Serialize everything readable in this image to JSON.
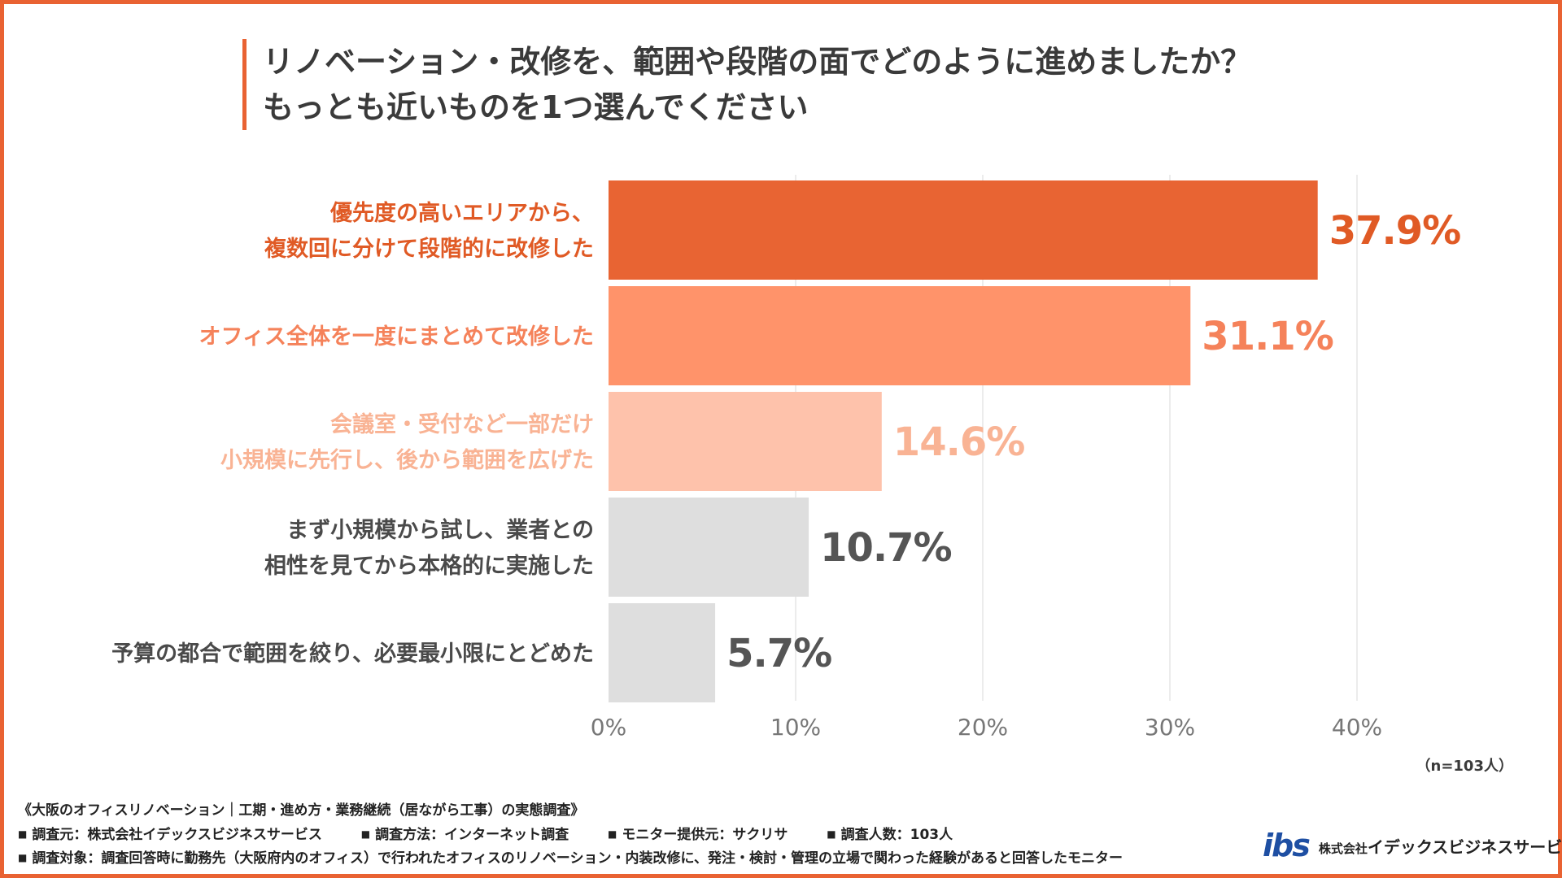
{
  "title": {
    "line1": "リノベーション・改修を、範囲や段階の面でどのように進めましたか？",
    "line2": "もっとも近いものを1つ選んでください"
  },
  "colors": {
    "border": "#e96232",
    "bar1": "#e86433",
    "bar2": "#ff936a",
    "bar3": "#fec2ab",
    "bar_gray": "#dedede",
    "label_gray": "#4a4a4a",
    "value_gray": "#555555",
    "grid": "#e6e6e6"
  },
  "chart_data": {
    "type": "bar",
    "orientation": "horizontal",
    "categories": [
      [
        "優先度の高いエリアから、",
        "複数回に分けて段階的に改修した"
      ],
      [
        "オフィス全体を一度にまとめて改修した"
      ],
      [
        "会議室・受付など一部だけ",
        "小規模に先行し、後から範囲を広げた"
      ],
      [
        "まず小規模から試し、業者との",
        "相性を見てから本格的に実施した"
      ],
      [
        "予算の都合で範囲を絞り、必要最小限にとどめた"
      ]
    ],
    "values": [
      37.9,
      31.1,
      14.6,
      10.7,
      5.7
    ],
    "value_labels": [
      "37.9%",
      "31.1%",
      "14.6%",
      "10.7%",
      "5.7%"
    ],
    "bar_colors": [
      "#e86433",
      "#ff936a",
      "#fec2ab",
      "#dedede",
      "#dedede"
    ],
    "label_colors": [
      "#e05a25",
      "#f5825a",
      "#f9b394",
      "#4a4a4a",
      "#4a4a4a"
    ],
    "value_colors": [
      "#e05a25",
      "#f5825a",
      "#f9b394",
      "#555555",
      "#555555"
    ],
    "xlim": [
      0,
      40
    ],
    "xticks": [
      0,
      10,
      20,
      30,
      40
    ],
    "xtick_labels": [
      "0%",
      "10%",
      "20%",
      "30%",
      "40%"
    ],
    "grid": true
  },
  "sample_note": "（n=103人）",
  "footer": {
    "survey_name": "《大阪のオフィスリノベーション｜工期・進め方・業務継続（居ながら工事）の実態調査》",
    "items": [
      "調査元：株式会社イデックスビジネスサービス",
      "調査方法：インターネット調査",
      "モニター提供元：サクリサ",
      "調査人数：103人"
    ],
    "target": "調査対象：調査回答時に勤務先（大阪府内のオフィス）で行われたオフィスのリノベーション・内装改修に、発注・検討・管理の立場で関わった経験があると回答したモニター"
  },
  "brand": {
    "logo_text": "ibs",
    "company_prefix": "株式会社",
    "company_name": "イデックスビジネスサービス"
  }
}
